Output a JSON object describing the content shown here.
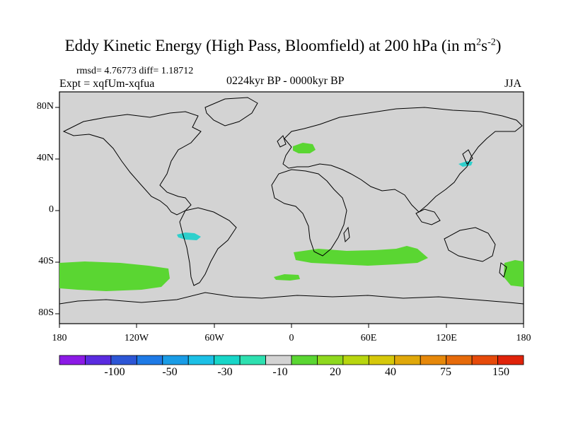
{
  "title": {
    "main": "Eddy Kinetic Energy (High Pass, Bloomfield) at 200 hPa (in m",
    "sup1": "2",
    "mid": "s",
    "sup2": "-2",
    "end": ")"
  },
  "stats": "rmsd= 4.76773 diff= 1.18712",
  "expt": "Expt = xqfUm-xqfua",
  "period": "0224kyr BP - 0000kyr BP",
  "season": "JJA",
  "map": {
    "lat_labels": [
      "80N",
      "40N",
      "0",
      "40S",
      "80S"
    ],
    "lon_labels": [
      "180",
      "120W",
      "60W",
      "0",
      "60E",
      "120E",
      "180"
    ],
    "background_color": "#d3d3d3"
  },
  "colorbar": {
    "colors": [
      "#8c1ae6",
      "#5a2be0",
      "#2d56d6",
      "#1e7ae6",
      "#199ce6",
      "#1cc0e6",
      "#18d6c8",
      "#2ee0b0",
      "#d3d3d3",
      "#5ad632",
      "#8ed81e",
      "#b8d60f",
      "#d6c80a",
      "#e0a80a",
      "#e6880a",
      "#e66a0a",
      "#e64a0a",
      "#e0230a"
    ],
    "labels": [
      "-100",
      "-50",
      "-30",
      "-10",
      "20",
      "40",
      "75",
      "150"
    ]
  }
}
